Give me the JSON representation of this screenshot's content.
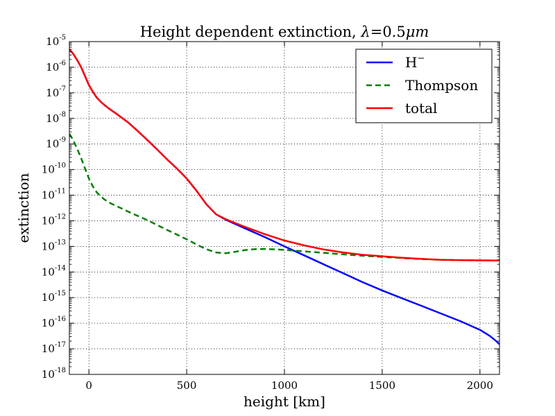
{
  "chart_data": {
    "type": "line",
    "title": "Height dependent extinction, λ=0.5μm",
    "title_prefix": "Height dependent extinction, ",
    "title_lambda": "λ",
    "title_value": "=0.5",
    "title_unit": "μm",
    "xlabel": "height [km]",
    "ylabel": "extinction",
    "xlim": [
      -100,
      2100
    ],
    "ylim_exp": [
      -18,
      -5
    ],
    "yscale": "log",
    "x_ticks": [
      0,
      500,
      1000,
      1500,
      2000
    ],
    "x_tick_labels": [
      "0",
      "500",
      "1000",
      "1500",
      "2000"
    ],
    "y_tick_exponents": [
      -5,
      -6,
      -7,
      -8,
      -9,
      -10,
      -11,
      -12,
      -13,
      -14,
      -15,
      -16,
      -17,
      -18
    ],
    "y_tick_labels": [
      "10-5",
      "10-6",
      "10-7",
      "10-8",
      "10-9",
      "10-10",
      "10-11",
      "10-12",
      "10-13",
      "10-14",
      "10-15",
      "10-16",
      "10-17",
      "10-18"
    ],
    "y_tick_base": "10",
    "grid": true,
    "legend_position": "top-right",
    "series": [
      {
        "name": "H⁻",
        "legend_base": "H",
        "legend_sup": "−",
        "color": "#0000ff",
        "dash": "solid",
        "x": [
          -100,
          -80,
          -60,
          -40,
          -20,
          0,
          20,
          40,
          60,
          80,
          100,
          150,
          200,
          250,
          300,
          350,
          400,
          450,
          500,
          550,
          600,
          650,
          700,
          800,
          900,
          1000,
          1100,
          1200,
          1300,
          1400,
          1500,
          1600,
          1700,
          1800,
          1900,
          2000,
          2050,
          2080,
          2100
        ],
        "y": [
          5e-06,
          3.3e-06,
          1.9e-06,
          1e-06,
          4.5e-07,
          2e-07,
          1.1e-07,
          6.5e-08,
          4.5e-08,
          3.3e-08,
          2.5e-08,
          1.35e-08,
          7e-09,
          3.2e-09,
          1.4e-09,
          6e-10,
          2.5e-10,
          1.1e-10,
          4.5e-11,
          1.5e-11,
          4.5e-12,
          1.8e-12,
          1.1e-12,
          5e-13,
          2.3e-13,
          1e-13,
          4.5e-14,
          2e-14,
          9e-15,
          4e-15,
          1.9e-15,
          9.5e-16,
          4.8e-16,
          2.4e-16,
          1.2e-16,
          5.5e-17,
          3.2e-17,
          2.1e-17,
          1.5e-17
        ]
      },
      {
        "name": "Thompson",
        "color": "#007f00",
        "dash": "dashed",
        "x": [
          -100,
          -80,
          -60,
          -40,
          -20,
          0,
          20,
          40,
          60,
          80,
          100,
          150,
          200,
          250,
          300,
          350,
          400,
          450,
          500,
          550,
          600,
          650,
          700,
          750,
          800,
          850,
          900,
          950,
          1000,
          1100,
          1200,
          1300,
          1400,
          1500,
          1600,
          1700,
          1800,
          1900,
          2000,
          2100
        ],
        "y": [
          2.5e-09,
          1.4e-09,
          6.5e-10,
          2.8e-10,
          1.1e-10,
          4.5e-11,
          2.2e-11,
          1.3e-11,
          9e-12,
          6.8e-12,
          5.3e-12,
          3.5e-12,
          2.3e-12,
          1.55e-12,
          1.05e-12,
          6.8e-13,
          4.4e-13,
          2.9e-13,
          1.9e-13,
          1.2e-13,
          7.8e-14,
          5.8e-14,
          5.4e-14,
          6.2e-14,
          7.2e-14,
          7.8e-14,
          7.9e-14,
          7.7e-14,
          7.3e-14,
          6.4e-14,
          5.6e-14,
          4.9e-14,
          4.3e-14,
          3.9e-14,
          3.5e-14,
          3.2e-14,
          3e-14,
          2.9e-14,
          2.85e-14,
          2.8e-14
        ]
      },
      {
        "name": "total",
        "color": "#ff0000",
        "dash": "solid",
        "x": [
          -100,
          -80,
          -60,
          -40,
          -20,
          0,
          20,
          40,
          60,
          80,
          100,
          150,
          200,
          250,
          300,
          350,
          400,
          450,
          500,
          550,
          600,
          650,
          700,
          800,
          900,
          1000,
          1100,
          1200,
          1300,
          1400,
          1500,
          1600,
          1700,
          1800,
          1900,
          2000,
          2100
        ],
        "y": [
          5e-06,
          3.3e-06,
          1.9e-06,
          1e-06,
          4.5e-07,
          2e-07,
          1.1e-07,
          6.5e-08,
          4.5e-08,
          3.3e-08,
          2.5e-08,
          1.35e-08,
          7e-09,
          3.2e-09,
          1.4e-09,
          6e-10,
          2.5e-10,
          1.1e-10,
          4.5e-11,
          1.5e-11,
          4.5e-12,
          1.8e-12,
          1.15e-12,
          5.7e-13,
          3e-13,
          1.7e-13,
          1.1e-13,
          7.6e-14,
          5.8e-14,
          4.7e-14,
          4.1e-14,
          3.6e-14,
          3.25e-14,
          3e-14,
          2.9e-14,
          2.85e-14,
          2.8e-14
        ]
      }
    ]
  }
}
